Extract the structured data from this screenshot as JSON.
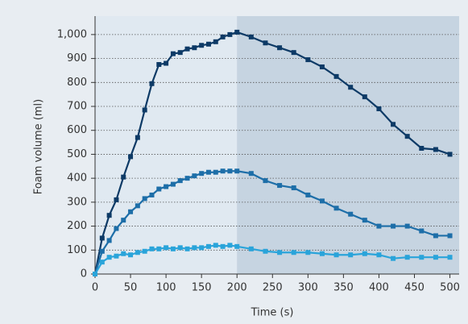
{
  "chart_data": {
    "type": "line",
    "x_label": "Time (s)",
    "y_label": "Foam volume (ml)",
    "x": [
      0,
      10,
      20,
      30,
      40,
      50,
      60,
      70,
      80,
      90,
      100,
      110,
      120,
      130,
      140,
      150,
      160,
      170,
      180,
      190,
      200,
      220,
      240,
      260,
      280,
      300,
      320,
      340,
      360,
      380,
      400,
      420,
      440,
      460,
      480,
      500
    ],
    "series": [
      {
        "color": "#0d3a66",
        "values": [
          0,
          150,
          245,
          310,
          405,
          490,
          570,
          685,
          795,
          875,
          880,
          920,
          925,
          940,
          945,
          955,
          960,
          970,
          990,
          1000,
          1010,
          990,
          965,
          945,
          925,
          895,
          865,
          825,
          780,
          740,
          690,
          625,
          575,
          525,
          520,
          500
        ]
      },
      {
        "color": "#1d6ea8",
        "values": [
          0,
          95,
          140,
          190,
          225,
          260,
          285,
          315,
          330,
          355,
          365,
          375,
          390,
          400,
          410,
          420,
          425,
          425,
          430,
          430,
          430,
          420,
          390,
          370,
          360,
          330,
          305,
          275,
          250,
          225,
          200,
          200,
          200,
          180,
          160,
          160
        ]
      },
      {
        "color": "#2aa4da",
        "values": [
          0,
          50,
          70,
          75,
          85,
          80,
          90,
          95,
          105,
          105,
          110,
          105,
          110,
          105,
          110,
          110,
          115,
          120,
          115,
          120,
          115,
          105,
          95,
          90,
          90,
          90,
          85,
          80,
          80,
          85,
          80,
          65,
          70,
          70,
          70,
          70
        ]
      }
    ],
    "highlight_xrange": [
      200,
      500
    ],
    "xlim": [
      0,
      513
    ],
    "ylim": [
      0,
      1077
    ],
    "xticks": [
      0,
      50,
      100,
      150,
      200,
      250,
      300,
      350,
      400,
      450,
      500
    ],
    "yticks": [
      0,
      100,
      200,
      300,
      400,
      500,
      600,
      700,
      800,
      900,
      {
        "value": 1000,
        "label": "1,000"
      }
    ],
    "grid": true
  }
}
